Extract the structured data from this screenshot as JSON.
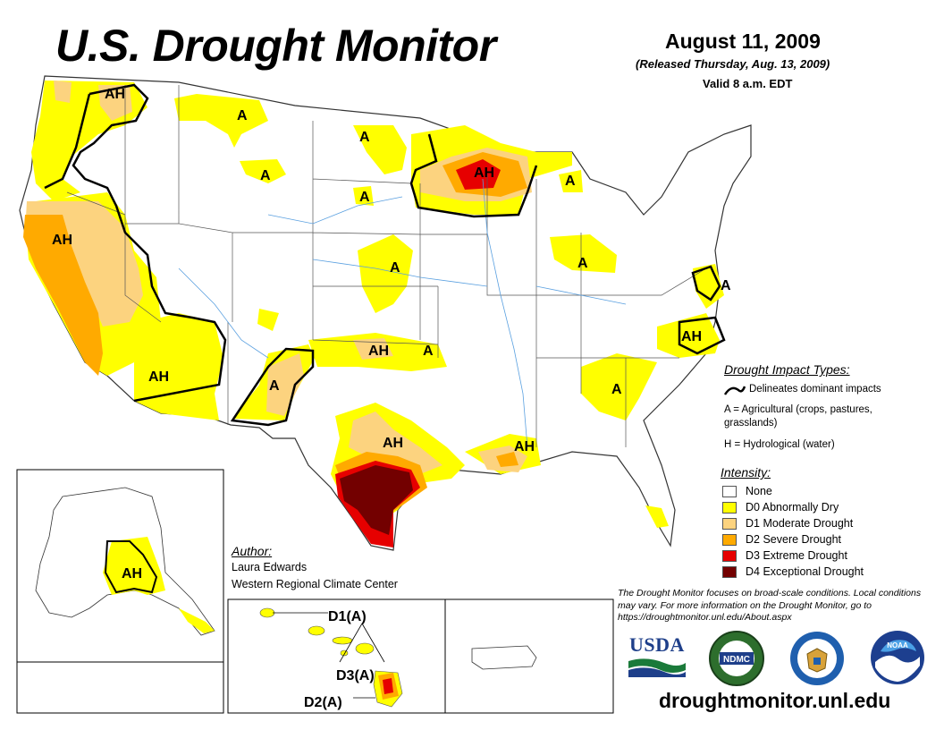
{
  "header": {
    "title": "U.S. Drought Monitor",
    "date": "August 11, 2009",
    "released": "(Released Thursday, Aug. 13, 2009)",
    "valid": "Valid 8 a.m. EDT"
  },
  "map_labels": {
    "ah_nw": "AH",
    "a_mt": "A",
    "a_nd": "A",
    "a_wy": "A",
    "a_sd": "A",
    "ah_wi": "AH",
    "a_mi": "A",
    "ah_ca": "AH",
    "a_ne": "A",
    "a_in": "A",
    "a_md": "A",
    "ah_nc": "AH",
    "ah_ok": "AH",
    "a_ok": "A",
    "ah_az": "AH",
    "a_nm": "A",
    "a_ga": "A",
    "ah_tx": "AH",
    "ah_la": "AH",
    "ah_ak": "AH",
    "hi_d1": "D1(A)",
    "hi_d3": "D3(A)",
    "hi_d2": "D2(A)"
  },
  "impact_legend": {
    "title": "Drought Impact Types:",
    "line_desc": "Delineates dominant impacts",
    "a_desc_1": "A = Agricultural (crops, pastures,",
    "a_desc_2": "grasslands)",
    "h_desc": "H = Hydrological (water)"
  },
  "intensity_legend": {
    "title": "Intensity:",
    "items": [
      {
        "label": "None",
        "color": "#ffffff"
      },
      {
        "label": "D0 Abnormally Dry",
        "color": "#ffff00"
      },
      {
        "label": "D1 Moderate Drought",
        "color": "#fcd37f"
      },
      {
        "label": "D2 Severe Drought",
        "color": "#ffaa00"
      },
      {
        "label": "D3 Extreme Drought",
        "color": "#e60000"
      },
      {
        "label": "D4 Exceptional Drought",
        "color": "#730000"
      }
    ]
  },
  "author": {
    "title": "Author:",
    "name": "Laura Edwards",
    "org": "Western Regional Climate Center"
  },
  "disclaimer": "The Drought Monitor focuses on broad-scale conditions. Local conditions may vary. For more information on the Drought Monitor, go to https://droughtmonitor.unl.edu/About.aspx",
  "logos": {
    "usda": "USDA",
    "ndmc": "NDMC",
    "noaa": "NOAA"
  },
  "website": "droughtmonitor.unl.edu"
}
